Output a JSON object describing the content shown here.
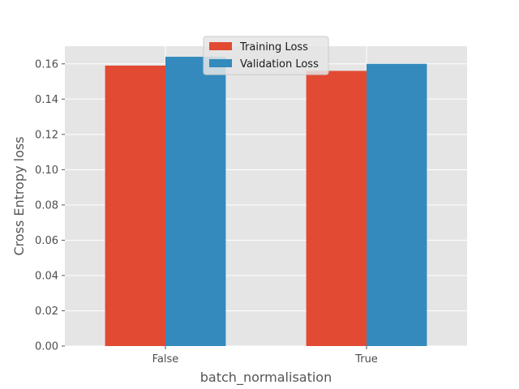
{
  "chart_data": {
    "type": "bar",
    "title": "",
    "xlabel": "batch_normalisation",
    "ylabel": "Cross Entropy loss",
    "categories": [
      "False",
      "True"
    ],
    "series": [
      {
        "name": "Training Loss",
        "values": [
          0.159,
          0.156
        ],
        "color": "#E24A33"
      },
      {
        "name": "Validation Loss",
        "values": [
          0.164,
          0.16
        ],
        "color": "#348ABD"
      }
    ],
    "ylim": [
      0,
      0.17
    ],
    "yticks": [
      "0.00",
      "0.02",
      "0.04",
      "0.06",
      "0.08",
      "0.10",
      "0.12",
      "0.14",
      "0.16"
    ],
    "grid": true,
    "legend_position": "upper-center",
    "colors": {
      "axes_background": "#E5E5E5",
      "grid": "#FFFFFF"
    }
  }
}
